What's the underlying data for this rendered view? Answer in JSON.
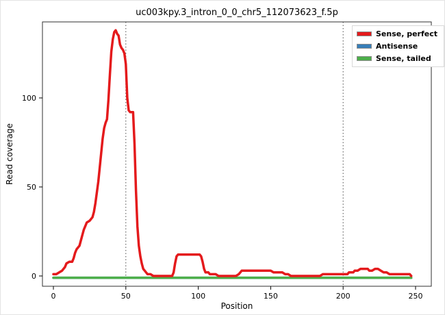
{
  "figure": {
    "title": "uc003kpy.3_intron_0_0_chr5_112073623_f.5p"
  },
  "chart_data": {
    "type": "line",
    "title": "uc003kpy.3_intron_0_0_chr5_112073623_f.5p",
    "xlabel": "Position",
    "ylabel": "Read coverage",
    "xlim": [
      0,
      250
    ],
    "ylim": [
      -3,
      140
    ],
    "xticks": [
      0,
      50,
      100,
      150,
      200,
      250
    ],
    "yticks": [
      0,
      50,
      100
    ],
    "grid": false,
    "legend_position": "top-right",
    "vlines": [
      50,
      200
    ],
    "legend": [
      {
        "label": "Sense, perfect",
        "color": "#e41a1c"
      },
      {
        "label": "Antisense",
        "color": "#377eb8"
      },
      {
        "label": "Sense, tailed",
        "color": "#4daf4a"
      }
    ],
    "series": [
      {
        "name": "Antisense",
        "color": "#377eb8",
        "points": [
          [
            0,
            -1
          ],
          [
            247,
            -1
          ]
        ]
      },
      {
        "name": "Sense, tailed",
        "color": "#4daf4a",
        "points": [
          [
            0,
            -1
          ],
          [
            247,
            -1
          ]
        ]
      },
      {
        "name": "Sense, perfect",
        "color": "#e41a1c",
        "points": [
          [
            0,
            1
          ],
          [
            2,
            1
          ],
          [
            4,
            2
          ],
          [
            6,
            3
          ],
          [
            8,
            5
          ],
          [
            9,
            7
          ],
          [
            11,
            8
          ],
          [
            13,
            8
          ],
          [
            14,
            10
          ],
          [
            15,
            13
          ],
          [
            16,
            15
          ],
          [
            18,
            17
          ],
          [
            19,
            20
          ],
          [
            20,
            23
          ],
          [
            21,
            26
          ],
          [
            22,
            28
          ],
          [
            23,
            30
          ],
          [
            25,
            31
          ],
          [
            26,
            32
          ],
          [
            27,
            33
          ],
          [
            28,
            36
          ],
          [
            29,
            41
          ],
          [
            30,
            47
          ],
          [
            31,
            53
          ],
          [
            32,
            61
          ],
          [
            33,
            69
          ],
          [
            34,
            77
          ],
          [
            35,
            83
          ],
          [
            36,
            86
          ],
          [
            37,
            88
          ],
          [
            38,
            99
          ],
          [
            39,
            113
          ],
          [
            40,
            126
          ],
          [
            41,
            133
          ],
          [
            42,
            137
          ],
          [
            43,
            138
          ],
          [
            44,
            136
          ],
          [
            45,
            135
          ],
          [
            46,
            130
          ],
          [
            47,
            128
          ],
          [
            48,
            127
          ],
          [
            49,
            125
          ],
          [
            50,
            119
          ],
          [
            51,
            100
          ],
          [
            52,
            93
          ],
          [
            53,
            92
          ],
          [
            55,
            92
          ],
          [
            56,
            74
          ],
          [
            57,
            48
          ],
          [
            58,
            28
          ],
          [
            59,
            17
          ],
          [
            60,
            11
          ],
          [
            61,
            7
          ],
          [
            62,
            4
          ],
          [
            63,
            3
          ],
          [
            64,
            2
          ],
          [
            65,
            1
          ],
          [
            67,
            1
          ],
          [
            69,
            0
          ],
          [
            75,
            0
          ],
          [
            80,
            0
          ],
          [
            82,
            0
          ],
          [
            83,
            2
          ],
          [
            84,
            7
          ],
          [
            85,
            11
          ],
          [
            86,
            12
          ],
          [
            95,
            12
          ],
          [
            101,
            12
          ],
          [
            102,
            11
          ],
          [
            103,
            8
          ],
          [
            104,
            4
          ],
          [
            105,
            2
          ],
          [
            107,
            2
          ],
          [
            108,
            1
          ],
          [
            112,
            1
          ],
          [
            114,
            0
          ],
          [
            120,
            0
          ],
          [
            126,
            0
          ],
          [
            128,
            1
          ],
          [
            129,
            2
          ],
          [
            130,
            3
          ],
          [
            140,
            3
          ],
          [
            150,
            3
          ],
          [
            152,
            2
          ],
          [
            158,
            2
          ],
          [
            160,
            1
          ],
          [
            162,
            1
          ],
          [
            164,
            0
          ],
          [
            170,
            0
          ],
          [
            180,
            0
          ],
          [
            184,
            0
          ],
          [
            186,
            1
          ],
          [
            200,
            1
          ],
          [
            203,
            1
          ],
          [
            204,
            2
          ],
          [
            207,
            2
          ],
          [
            208,
            3
          ],
          [
            210,
            3
          ],
          [
            212,
            4
          ],
          [
            217,
            4
          ],
          [
            218,
            3
          ],
          [
            220,
            3
          ],
          [
            222,
            4
          ],
          [
            224,
            4
          ],
          [
            226,
            3
          ],
          [
            228,
            2
          ],
          [
            230,
            2
          ],
          [
            232,
            1
          ],
          [
            240,
            1
          ],
          [
            246,
            1
          ],
          [
            247,
            0
          ]
        ]
      }
    ]
  }
}
